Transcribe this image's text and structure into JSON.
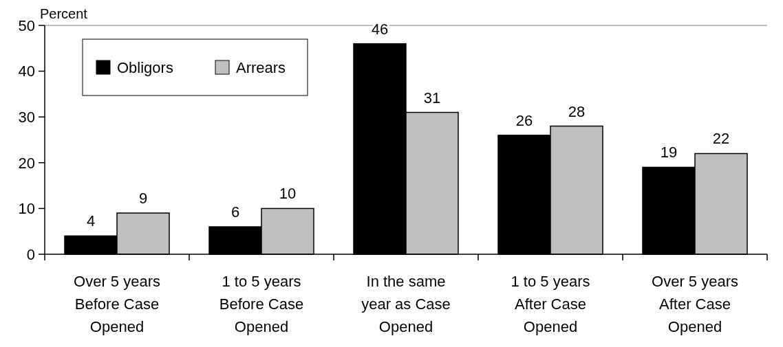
{
  "chart_data": {
    "type": "bar",
    "ylabel": "Percent",
    "categories": [
      "Over 5 years Before Case Opened",
      "1 to 5 years Before Case Opened",
      "In the same year as Case Opened",
      "1 to 5 years After Case Opened",
      "Over 5 years After Case Opened"
    ],
    "series": [
      {
        "name": "Obligors",
        "color": "#000000",
        "values": [
          4,
          6,
          46,
          26,
          19
        ]
      },
      {
        "name": "Arrears",
        "color": "#c0c0c0",
        "values": [
          9,
          10,
          31,
          28,
          22
        ]
      }
    ],
    "ylim": [
      0,
      50
    ],
    "yticks": [
      0,
      10,
      20,
      30,
      40,
      50
    ],
    "grid": false,
    "legend": "top left",
    "data_labels": true
  }
}
